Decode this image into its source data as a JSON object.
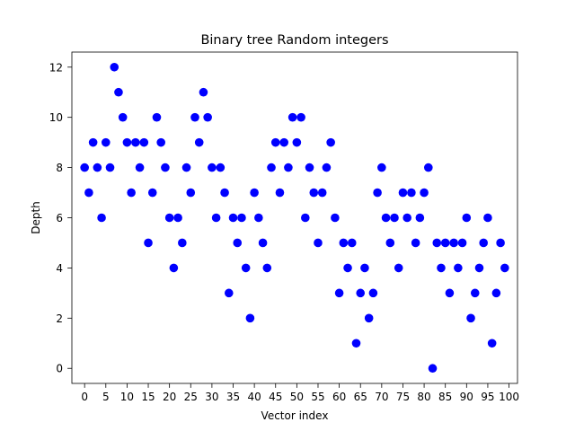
{
  "chart_data": {
    "type": "scatter",
    "title": "Binary tree Random integers",
    "xlabel": "Vector index",
    "ylabel": "Depth",
    "xlim": [
      -3,
      102
    ],
    "ylim": [
      -0.6,
      12.6
    ],
    "xticks": [
      0,
      5,
      10,
      15,
      20,
      25,
      30,
      35,
      40,
      45,
      50,
      55,
      60,
      65,
      70,
      75,
      80,
      85,
      90,
      95,
      100
    ],
    "yticks": [
      0,
      2,
      4,
      6,
      8,
      10,
      12
    ],
    "grid": false,
    "marker_color": "#0000ff",
    "x": [
      0,
      1,
      2,
      3,
      4,
      5,
      6,
      7,
      8,
      9,
      10,
      11,
      12,
      13,
      14,
      15,
      16,
      17,
      18,
      19,
      20,
      21,
      22,
      23,
      24,
      25,
      26,
      27,
      28,
      29,
      30,
      31,
      32,
      33,
      34,
      35,
      36,
      37,
      38,
      39,
      40,
      41,
      42,
      43,
      44,
      45,
      46,
      47,
      48,
      49,
      50,
      51,
      52,
      53,
      54,
      55,
      56,
      57,
      58,
      59,
      60,
      61,
      62,
      63,
      64,
      65,
      66,
      67,
      68,
      69,
      70,
      71,
      72,
      73,
      74,
      75,
      76,
      77,
      78,
      79,
      80,
      81,
      82,
      83,
      84,
      85,
      86,
      87,
      88,
      89,
      90,
      91,
      92,
      93,
      94,
      95,
      96,
      97,
      98,
      99
    ],
    "y": [
      8,
      7,
      9,
      8,
      6,
      9,
      8,
      12,
      11,
      10,
      9,
      7,
      9,
      8,
      9,
      5,
      7,
      10,
      9,
      8,
      6,
      4,
      6,
      5,
      8,
      7,
      10,
      9,
      11,
      10,
      8,
      6,
      8,
      7,
      3,
      6,
      5,
      6,
      4,
      2,
      7,
      6,
      5,
      4,
      8,
      9,
      7,
      9,
      8,
      10,
      9,
      10,
      6,
      8,
      7,
      5,
      7,
      8,
      9,
      6,
      3,
      5,
      4,
      5,
      1,
      3,
      4,
      2,
      3,
      7,
      8,
      6,
      5,
      6,
      4,
      7,
      6,
      7,
      5,
      6,
      7,
      8,
      0,
      5,
      4,
      5,
      3,
      5,
      4,
      5,
      6,
      2,
      3,
      4,
      5,
      6,
      1,
      3,
      5,
      4
    ]
  }
}
